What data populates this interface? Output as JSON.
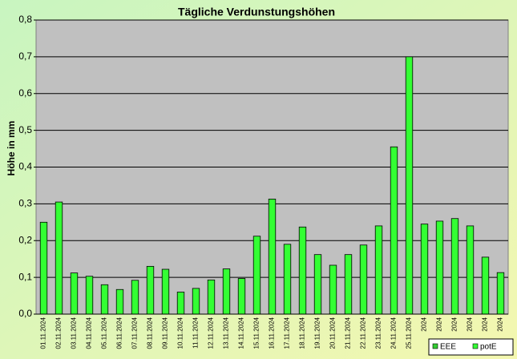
{
  "chart_data": {
    "type": "bar",
    "title": "Tägliche Verdunstungshöhen",
    "y_label": "Höhe in mm",
    "categories": [
      "01.11.2024",
      "02.11.2024",
      "03.11.2024",
      "04.11.2024",
      "05.11.2024",
      "06.11.2024",
      "07.11.2024",
      "08.11.2024",
      "09.11.2024",
      "10.11.2024",
      "11.11.2024",
      "12.11.2024",
      "13.11.2024",
      "14.11.2024",
      "15.11.2024",
      "16.11.2024",
      "17.11.2024",
      "18.11.2024",
      "19.11.2024",
      "20.11.2024",
      "21.11.2024",
      "22.11.2024",
      "23.11.2024",
      "24.11.2024",
      "25.11.2024",
      "2024",
      "2024",
      "2024",
      "2024",
      "2024",
      "2024"
    ],
    "series": [
      {
        "name": "EEE",
        "color": "#33cc33",
        "values": [
          null,
          null,
          null,
          null,
          null,
          null,
          null,
          null,
          null,
          null,
          null,
          null,
          null,
          null,
          null,
          null,
          null,
          null,
          null,
          null,
          null,
          null,
          null,
          null,
          null,
          null,
          null,
          null,
          null,
          null,
          null
        ]
      },
      {
        "name": "potE",
        "color": "#33ff33",
        "values": [
          0.25,
          0.305,
          0.112,
          0.103,
          0.08,
          0.067,
          0.092,
          0.13,
          0.122,
          0.06,
          0.07,
          0.093,
          0.123,
          0.097,
          0.212,
          0.313,
          0.19,
          0.237,
          0.162,
          0.133,
          0.162,
          0.188,
          0.24,
          0.455,
          0.7,
          0.245,
          0.253,
          0.26,
          0.24,
          0.155,
          0.113
        ]
      }
    ],
    "ylim": [
      0,
      0.8
    ],
    "yticks": [
      {
        "value": 0,
        "label": "0,0"
      },
      {
        "value": 0.1,
        "label": "0,1"
      },
      {
        "value": 0.2,
        "label": "0,2"
      },
      {
        "value": 0.3,
        "label": "0,3"
      },
      {
        "value": 0.4,
        "label": "0,4"
      },
      {
        "value": 0.5,
        "label": "0,5"
      },
      {
        "value": 0.6,
        "label": "0,6"
      },
      {
        "value": 0.7,
        "label": "0,7"
      },
      {
        "value": 0.8,
        "label": "0,8"
      }
    ],
    "grid": true
  }
}
